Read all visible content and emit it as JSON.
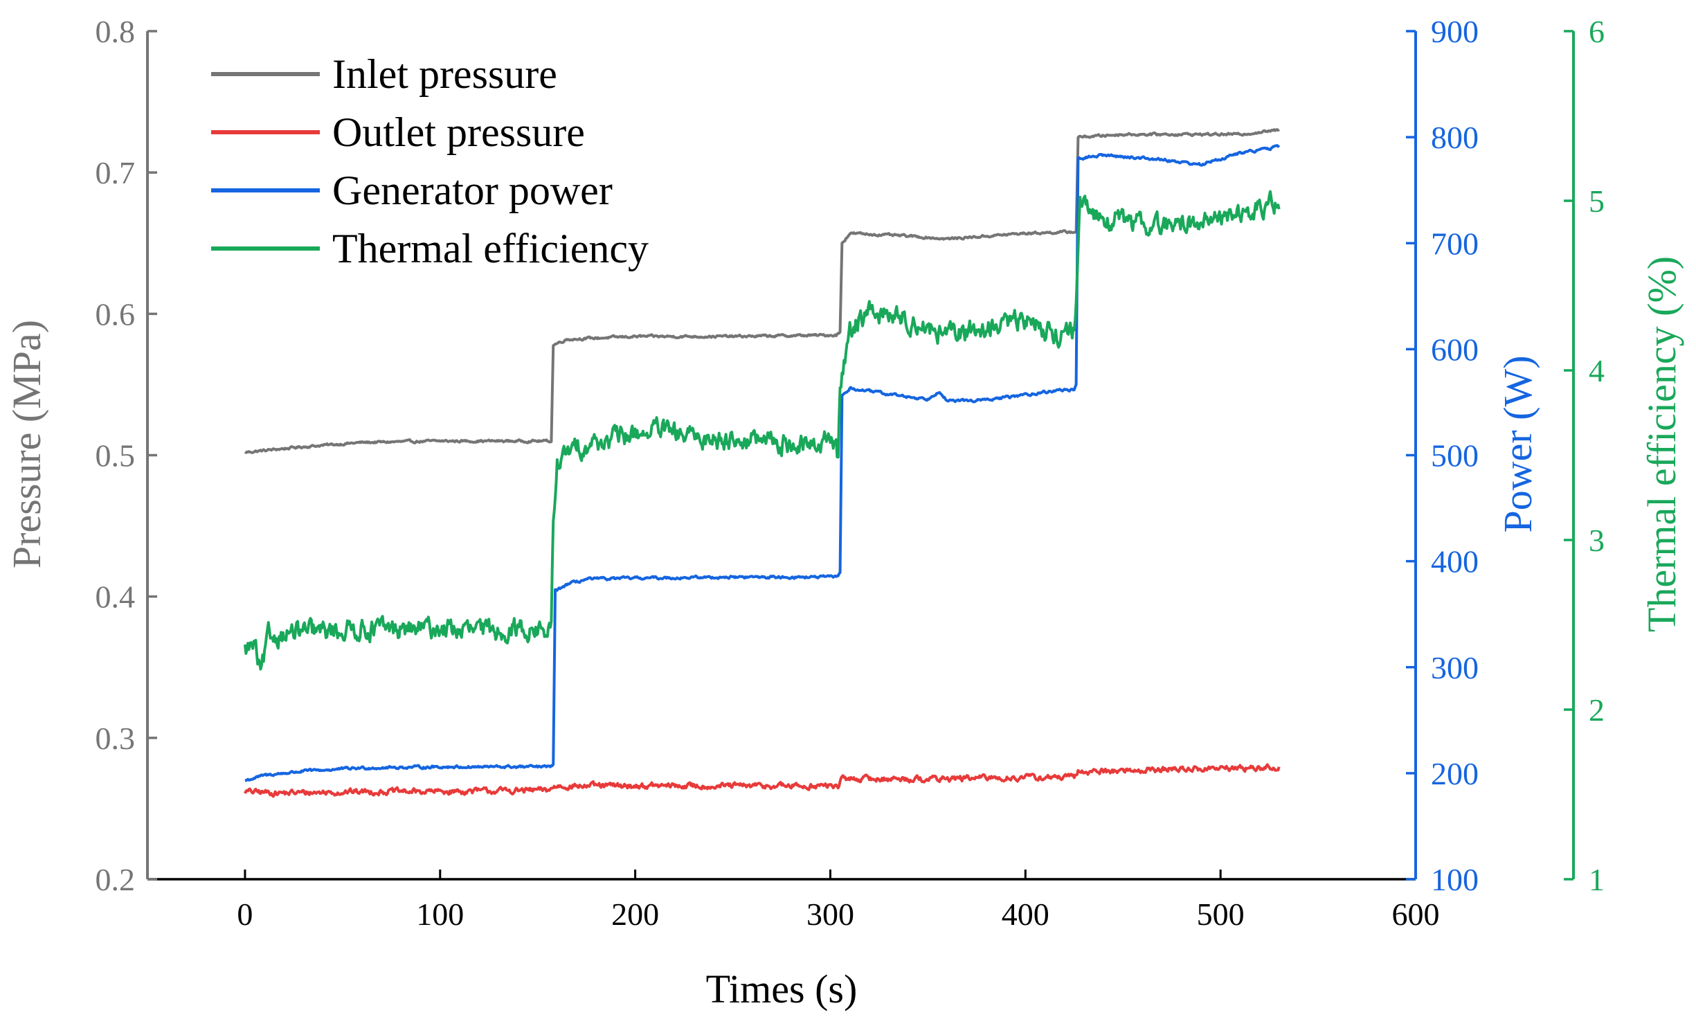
{
  "chart_data": {
    "type": "line",
    "title": "",
    "xlabel": "Times (s)",
    "xlim": [
      -50,
      600
    ],
    "x_ticks": [
      "0",
      "100",
      "200",
      "300",
      "400",
      "500",
      "600"
    ],
    "y_axes": [
      {
        "id": "pressure",
        "label": "Pressure (MPa)",
        "side": "left",
        "range": [
          0.2,
          0.8
        ],
        "ticks": [
          "0.2",
          "0.3",
          "0.4",
          "0.5",
          "0.6",
          "0.7",
          "0.8"
        ],
        "color": "#757575"
      },
      {
        "id": "power",
        "label": "Power (W)",
        "side": "right",
        "range": [
          100,
          900
        ],
        "ticks": [
          "100",
          "200",
          "300",
          "400",
          "500",
          "600",
          "700",
          "800",
          "900"
        ],
        "color": "#1565e0"
      },
      {
        "id": "efficiency",
        "label": "Thermal efficiency (%)",
        "side": "right-outer",
        "range": [
          1,
          6
        ],
        "ticks": [
          "1",
          "2",
          "3",
          "4",
          "5",
          "6"
        ],
        "color": "#19a85a"
      }
    ],
    "legend_position": "top-left",
    "series": [
      {
        "name": "Inlet pressure",
        "axis": "pressure",
        "color": "#757575",
        "noise": 0.0008,
        "points": [
          [
            0,
            0.502
          ],
          [
            30,
            0.506
          ],
          [
            60,
            0.509
          ],
          [
            100,
            0.51
          ],
          [
            155,
            0.51
          ],
          [
            157,
            0.51
          ],
          [
            158,
            0.578
          ],
          [
            165,
            0.582
          ],
          [
            200,
            0.584
          ],
          [
            250,
            0.584
          ],
          [
            303,
            0.585
          ],
          [
            305,
            0.587
          ],
          [
            306,
            0.65
          ],
          [
            310,
            0.657
          ],
          [
            340,
            0.655
          ],
          [
            360,
            0.653
          ],
          [
            400,
            0.657
          ],
          [
            425,
            0.658
          ],
          [
            426,
            0.658
          ],
          [
            427,
            0.725
          ],
          [
            450,
            0.727
          ],
          [
            480,
            0.727
          ],
          [
            510,
            0.727
          ],
          [
            530,
            0.73
          ]
        ]
      },
      {
        "name": "Outlet pressure",
        "axis": "pressure",
        "color": "#e83a3a",
        "noise": 0.002,
        "points": [
          [
            0,
            0.262
          ],
          [
            20,
            0.261
          ],
          [
            60,
            0.262
          ],
          [
            100,
            0.262
          ],
          [
            155,
            0.263
          ],
          [
            157,
            0.264
          ],
          [
            160,
            0.266
          ],
          [
            200,
            0.266
          ],
          [
            250,
            0.266
          ],
          [
            304,
            0.266
          ],
          [
            306,
            0.271
          ],
          [
            350,
            0.271
          ],
          [
            400,
            0.272
          ],
          [
            425,
            0.272
          ],
          [
            427,
            0.276
          ],
          [
            480,
            0.278
          ],
          [
            530,
            0.279
          ]
        ]
      },
      {
        "name": "Generator power",
        "axis": "power",
        "color": "#1565e0",
        "noise": 1.2,
        "points": [
          [
            0,
            193
          ],
          [
            10,
            198
          ],
          [
            30,
            202
          ],
          [
            60,
            205
          ],
          [
            100,
            206
          ],
          [
            156,
            206
          ],
          [
            158,
            208
          ],
          [
            159,
            372
          ],
          [
            165,
            378
          ],
          [
            175,
            383
          ],
          [
            200,
            384
          ],
          [
            250,
            385
          ],
          [
            300,
            385
          ],
          [
            304,
            386
          ],
          [
            305,
            390
          ],
          [
            306,
            556
          ],
          [
            310,
            563
          ],
          [
            340,
            555
          ],
          [
            350,
            553
          ],
          [
            356,
            561
          ],
          [
            360,
            551
          ],
          [
            380,
            552
          ],
          [
            400,
            557
          ],
          [
            420,
            562
          ],
          [
            425,
            561
          ],
          [
            426,
            565
          ],
          [
            427,
            780
          ],
          [
            440,
            783
          ],
          [
            470,
            779
          ],
          [
            490,
            774
          ],
          [
            510,
            785
          ],
          [
            530,
            791
          ]
        ]
      },
      {
        "name": "Thermal efficiency",
        "axis": "efficiency",
        "color": "#19a85a",
        "noise": 0.06,
        "points": [
          [
            0,
            2.35
          ],
          [
            5,
            2.38
          ],
          [
            8,
            2.2
          ],
          [
            12,
            2.42
          ],
          [
            20,
            2.45
          ],
          [
            40,
            2.46
          ],
          [
            60,
            2.48
          ],
          [
            80,
            2.47
          ],
          [
            100,
            2.48
          ],
          [
            120,
            2.46
          ],
          [
            140,
            2.48
          ],
          [
            155,
            2.46
          ],
          [
            157,
            2.47
          ],
          [
            158,
            3.1
          ],
          [
            160,
            3.45
          ],
          [
            170,
            3.55
          ],
          [
            190,
            3.6
          ],
          [
            210,
            3.65
          ],
          [
            230,
            3.6
          ],
          [
            250,
            3.6
          ],
          [
            270,
            3.58
          ],
          [
            290,
            3.55
          ],
          [
            300,
            3.6
          ],
          [
            303,
            3.55
          ],
          [
            304,
            3.45
          ],
          [
            305,
            3.9
          ],
          [
            310,
            4.25
          ],
          [
            320,
            4.35
          ],
          [
            340,
            4.3
          ],
          [
            360,
            4.2
          ],
          [
            380,
            4.25
          ],
          [
            400,
            4.3
          ],
          [
            420,
            4.2
          ],
          [
            425,
            4.25
          ],
          [
            426,
            4.4
          ],
          [
            428,
            4.95
          ],
          [
            440,
            4.9
          ],
          [
            470,
            4.85
          ],
          [
            500,
            4.9
          ],
          [
            520,
            4.95
          ],
          [
            530,
            5.0
          ]
        ]
      }
    ]
  }
}
